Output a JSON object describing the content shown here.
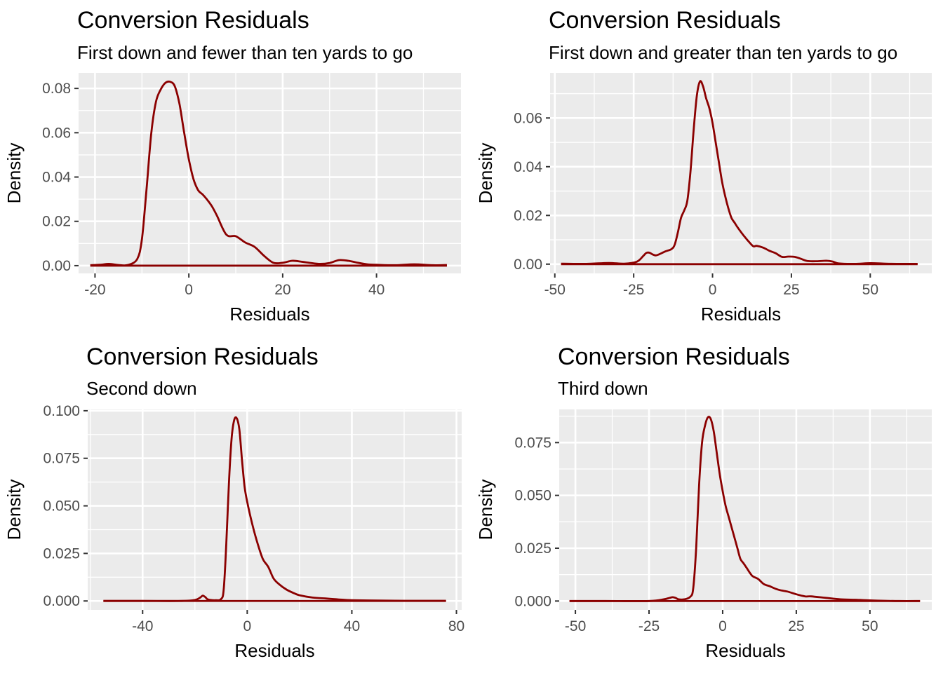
{
  "chart_data": [
    {
      "type": "line",
      "title": "Conversion Residuals",
      "subtitle": "First down and fewer than ten yards to go",
      "xlabel": "Residuals",
      "ylabel": "Density",
      "xlim": [
        -23.5,
        58
      ],
      "ylim": [
        -0.0035,
        0.087
      ],
      "xticks": [
        -20,
        0,
        20,
        40
      ],
      "xtick_labels": [
        "-20",
        "0",
        "20",
        "40"
      ],
      "yticks": [
        0,
        0.02,
        0.04,
        0.06,
        0.08
      ],
      "ytick_labels": [
        "0.00",
        "0.02",
        "0.04",
        "0.06",
        "0.08"
      ],
      "grid": true,
      "color": "#8b0000",
      "series": [
        {
          "x": [
            -21,
            -19,
            -17,
            -15,
            -13,
            -11,
            -10,
            -9,
            -8,
            -7,
            -6,
            -5,
            -4,
            -3,
            -2,
            -1,
            0,
            1,
            2,
            3,
            4,
            5,
            6,
            8,
            10,
            12,
            14,
            16,
            18,
            20,
            22,
            24,
            26,
            28,
            30,
            32,
            34,
            36,
            38,
            40,
            44,
            48,
            52,
            55
          ],
          "y": [
            0.0002,
            0.0004,
            0.0008,
            0.0003,
            0.0003,
            0.003,
            0.012,
            0.035,
            0.06,
            0.074,
            0.0795,
            0.0825,
            0.083,
            0.081,
            0.073,
            0.06,
            0.048,
            0.039,
            0.034,
            0.032,
            0.0295,
            0.0265,
            0.0225,
            0.014,
            0.0133,
            0.0105,
            0.0085,
            0.0045,
            0.0013,
            0.0013,
            0.0022,
            0.0018,
            0.0012,
            0.0008,
            0.0012,
            0.0025,
            0.0022,
            0.0013,
            0.0006,
            0.0004,
            0.0002,
            0.0006,
            0.0002,
            0.0003
          ]
        }
      ]
    },
    {
      "type": "line",
      "title": "Conversion Residuals",
      "subtitle": "First down and greater than ten yards to go",
      "xlabel": "Residuals",
      "ylabel": "Density",
      "xlim": [
        -51.5,
        69.5
      ],
      "ylim": [
        -0.0038,
        0.0785
      ],
      "xticks": [
        -50,
        -25,
        0,
        25,
        50
      ],
      "xtick_labels": [
        "-50",
        "-25",
        "0",
        "25",
        "50"
      ],
      "yticks": [
        0,
        0.02,
        0.04,
        0.06
      ],
      "ytick_labels": [
        "0.00",
        "0.02",
        "0.04",
        "0.06"
      ],
      "grid": true,
      "color": "#8b0000",
      "series": [
        {
          "x": [
            -48,
            -40,
            -33,
            -28,
            -24,
            -22,
            -21,
            -20,
            -19,
            -18,
            -17,
            -15,
            -13,
            -12,
            -11,
            -10,
            -9,
            -8,
            -7,
            -6,
            -5,
            -4,
            -3,
            -2,
            -1,
            0,
            1,
            2,
            3,
            4,
            5,
            6,
            7,
            8,
            10,
            12,
            13,
            14,
            16,
            18,
            20,
            22,
            24,
            26,
            28,
            30,
            33,
            36,
            38,
            40,
            45,
            50,
            55,
            60,
            65
          ],
          "y": [
            0.0002,
            0.0001,
            0.0005,
            0.0002,
            0.001,
            0.0033,
            0.0046,
            0.0047,
            0.004,
            0.0036,
            0.004,
            0.0052,
            0.0062,
            0.008,
            0.013,
            0.019,
            0.022,
            0.026,
            0.038,
            0.055,
            0.069,
            0.075,
            0.073,
            0.068,
            0.064,
            0.058,
            0.05,
            0.042,
            0.034,
            0.028,
            0.023,
            0.019,
            0.017,
            0.015,
            0.0115,
            0.0085,
            0.0073,
            0.0075,
            0.0068,
            0.0055,
            0.0045,
            0.003,
            0.0031,
            0.003,
            0.0022,
            0.0013,
            0.0012,
            0.0014,
            0.0011,
            0.0003,
            0.0001,
            0.0004,
            0.0002,
            0.0001,
            0.0001
          ]
        }
      ]
    },
    {
      "type": "line",
      "title": "Conversion Residuals",
      "subtitle": "Second down",
      "xlabel": "Residuals",
      "ylabel": "Density",
      "xlim": [
        -61,
        82
      ],
      "ylim": [
        -0.0047,
        0.1007
      ],
      "xticks": [
        -40,
        0,
        40,
        80
      ],
      "xtick_labels": [
        "-40",
        "0",
        "40",
        "80"
      ],
      "yticks": [
        0,
        0.025,
        0.05,
        0.075,
        0.1
      ],
      "ytick_labels": [
        "0.000",
        "0.025",
        "0.050",
        "0.075",
        "0.100"
      ],
      "grid": true,
      "color": "#8b0000",
      "series": [
        {
          "x": [
            -55,
            -40,
            -25,
            -20,
            -18,
            -17,
            -16,
            -15,
            -12,
            -10,
            -9,
            -8,
            -7,
            -6,
            -5,
            -4,
            -3,
            -2,
            -1,
            0,
            2,
            4,
            6,
            8,
            10,
            12,
            15,
            18,
            20,
            25,
            30,
            35,
            40,
            50,
            60,
            76
          ],
          "y": [
            0,
            0,
            0,
            0.0005,
            0.0018,
            0.0028,
            0.002,
            0.0008,
            0.0004,
            0.001,
            0.006,
            0.03,
            0.062,
            0.085,
            0.095,
            0.096,
            0.09,
            0.074,
            0.06,
            0.052,
            0.04,
            0.03,
            0.022,
            0.018,
            0.012,
            0.009,
            0.006,
            0.004,
            0.003,
            0.0018,
            0.0013,
            0.0008,
            0.0004,
            0.0002,
            0.0001,
            0.0001
          ]
        }
      ]
    },
    {
      "type": "line",
      "title": "Conversion Residuals",
      "subtitle": "Third down",
      "xlabel": "Residuals",
      "ylabel": "Density",
      "xlim": [
        -55.5,
        71
      ],
      "ylim": [
        -0.0042,
        0.0907
      ],
      "xticks": [
        -50,
        -25,
        0,
        25,
        50
      ],
      "xtick_labels": [
        "-50",
        "-25",
        "0",
        "25",
        "50"
      ],
      "yticks": [
        0,
        0.025,
        0.05,
        0.075
      ],
      "ytick_labels": [
        "0.000",
        "0.025",
        "0.050",
        "0.075"
      ],
      "grid": true,
      "color": "#8b0000",
      "series": [
        {
          "x": [
            -52,
            -40,
            -25,
            -20,
            -18,
            -17,
            -16,
            -15,
            -13,
            -11,
            -10,
            -9,
            -8,
            -7,
            -6,
            -5,
            -4,
            -3,
            -2,
            -1,
            0,
            1,
            2,
            3,
            4,
            5,
            6,
            7,
            8,
            10,
            12,
            14,
            16,
            18,
            20,
            22,
            25,
            28,
            30,
            35,
            40,
            45,
            50,
            55,
            60,
            67
          ],
          "y": [
            0,
            0,
            0,
            0.0008,
            0.0015,
            0.0018,
            0.0015,
            0.0008,
            0.0008,
            0.002,
            0.006,
            0.025,
            0.055,
            0.075,
            0.083,
            0.087,
            0.086,
            0.08,
            0.07,
            0.06,
            0.052,
            0.045,
            0.04,
            0.035,
            0.03,
            0.025,
            0.02,
            0.018,
            0.016,
            0.012,
            0.0105,
            0.008,
            0.007,
            0.0058,
            0.005,
            0.0045,
            0.0032,
            0.0022,
            0.0022,
            0.0015,
            0.0008,
            0.0006,
            0.0003,
            0.0001,
            0,
            0
          ]
        }
      ]
    }
  ]
}
